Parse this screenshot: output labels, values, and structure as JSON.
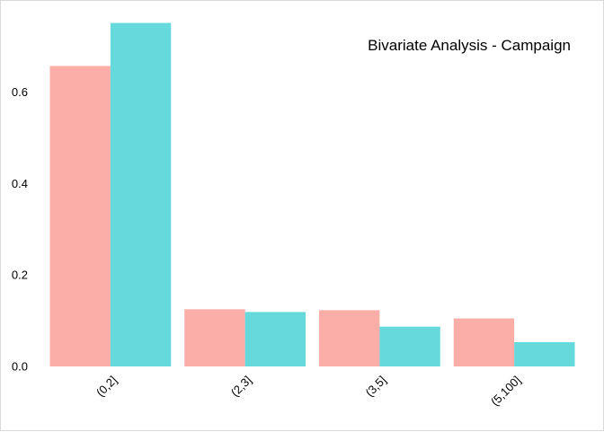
{
  "chart_data": {
    "type": "bar",
    "title": "Bivariate Analysis - Campaign",
    "xlabel": "",
    "ylabel": "",
    "categories": [
      "(0,2]",
      "(2,3]",
      "(3,5]",
      "(5,100]"
    ],
    "series": [
      {
        "values": [
          0.657,
          0.125,
          0.123,
          0.105
        ],
        "color": "#F8766D"
      },
      {
        "values": [
          0.751,
          0.119,
          0.087,
          0.053
        ],
        "color": "#00BFC4"
      }
    ],
    "bar_opacity": 0.6,
    "ylim": [
      0,
      0.76
    ],
    "yticks": [
      0.0,
      0.2,
      0.4,
      0.6
    ],
    "ytick_labels": [
      "0.0",
      "0.2",
      "0.4",
      "0.6"
    ],
    "grid": false,
    "legend": "none",
    "title_position": "inside top-right"
  }
}
